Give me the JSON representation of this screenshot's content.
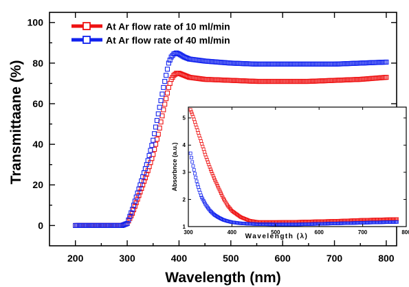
{
  "chart_data": [
    {
      "type": "line",
      "title": "",
      "xlabel": "Wavelength (nm)",
      "ylabel": "Transmittaane (%)",
      "xlim": [
        150,
        820
      ],
      "ylim": [
        -10,
        105
      ],
      "xticks": [
        "200",
        "300",
        "400",
        "500",
        "600",
        "700",
        "800"
      ],
      "yticks": [
        "0",
        "20",
        "40",
        "60",
        "80",
        "100"
      ],
      "grid": false,
      "legend_position": "top-left",
      "series": [
        {
          "name": "At Ar flow rate of 10 ml/min",
          "color": "#ee1111",
          "marker": "open-square",
          "x": [
            200,
            290,
            300,
            310,
            320,
            330,
            340,
            350,
            360,
            370,
            380,
            385,
            390,
            395,
            400,
            410,
            420,
            450,
            500,
            550,
            600,
            650,
            700,
            750,
            800
          ],
          "y": [
            0,
            0,
            1,
            6,
            13,
            20,
            27,
            35,
            45,
            57,
            68,
            72,
            74,
            75,
            75,
            74,
            73,
            72,
            71.5,
            71,
            71,
            71,
            71.5,
            72,
            73
          ]
        },
        {
          "name": "At Ar flow rate of 40 ml/min",
          "color": "#1122ee",
          "marker": "open-square",
          "x": [
            200,
            290,
            300,
            310,
            320,
            330,
            340,
            350,
            360,
            370,
            380,
            385,
            390,
            395,
            400,
            410,
            420,
            450,
            500,
            550,
            600,
            650,
            700,
            750,
            800
          ],
          "y": [
            0,
            0,
            1,
            8,
            16,
            24,
            32,
            42,
            55,
            68,
            80,
            83,
            84.5,
            85,
            84.5,
            83,
            82,
            81,
            80,
            79.5,
            79.5,
            79.5,
            79.5,
            80,
            80.5
          ]
        }
      ]
    },
    {
      "type": "line",
      "title": "",
      "xlabel": "Wavelength (λ)",
      "ylabel": "Absorbnce (a.u.)",
      "xlim": [
        300,
        800
      ],
      "ylim": [
        1,
        5.4
      ],
      "xticks": [
        "300",
        "400",
        "500",
        "600",
        "700",
        "800"
      ],
      "yticks": [
        "1",
        "2",
        "3",
        "4",
        "5"
      ],
      "grid": false,
      "series": [
        {
          "color": "#ee1111",
          "marker": "open-square",
          "x": [
            305,
            310,
            320,
            330,
            340,
            350,
            360,
            370,
            380,
            390,
            400,
            420,
            440,
            460,
            500,
            550,
            600,
            650,
            700,
            750,
            780
          ],
          "y": [
            5.3,
            5.1,
            4.6,
            4.1,
            3.6,
            3.15,
            2.75,
            2.4,
            2.05,
            1.78,
            1.58,
            1.35,
            1.22,
            1.17,
            1.17,
            1.18,
            1.2,
            1.22,
            1.25,
            1.27,
            1.28
          ]
        },
        {
          "color": "#1122ee",
          "marker": "open-square",
          "x": [
            305,
            310,
            320,
            330,
            340,
            350,
            360,
            370,
            380,
            390,
            400,
            420,
            440,
            460,
            500,
            550,
            600,
            650,
            700,
            750,
            780
          ],
          "y": [
            3.7,
            3.3,
            2.6,
            2.1,
            1.8,
            1.58,
            1.43,
            1.33,
            1.25,
            1.2,
            1.16,
            1.12,
            1.1,
            1.09,
            1.08,
            1.08,
            1.1,
            1.12,
            1.14,
            1.16,
            1.17
          ]
        }
      ]
    }
  ]
}
